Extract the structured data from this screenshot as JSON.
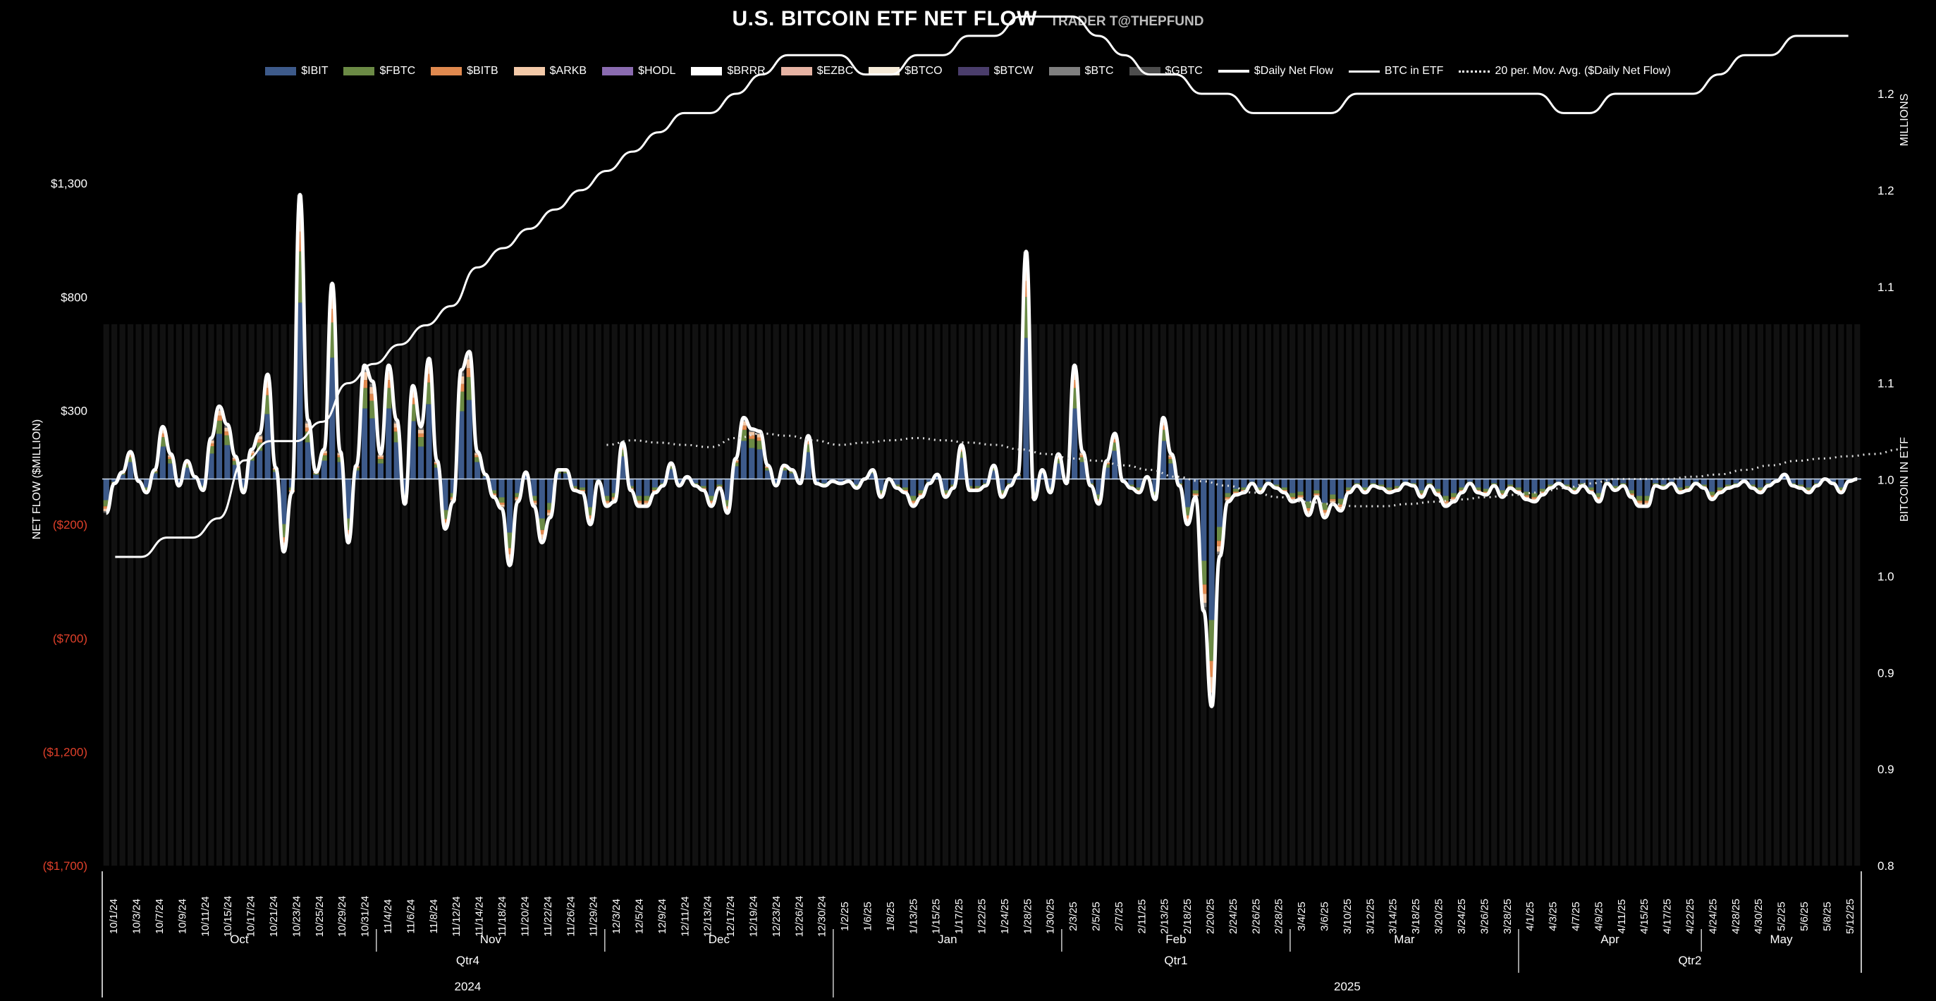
{
  "chart_data": {
    "type": "bar",
    "title": "U.S. BITCOIN ETF NET FLOW",
    "subtitle": "TRADER T@THEPFUND",
    "y_left_label": "NET FLOW ($MILLION)",
    "y_right_label": "BITCOIN IN ETF",
    "y_right_unit": "MILLIONS",
    "y_left_ticks": [
      "$1,300",
      "$800",
      "$300",
      "($200)",
      "($700)",
      "($1,200)",
      "($1,700)"
    ],
    "y_left_tick_values": [
      1300,
      800,
      300,
      -200,
      -700,
      -1200,
      -1700
    ],
    "y_right_ticks": [
      "1.2",
      "1.2",
      "1.1",
      "1.1",
      "1.0",
      "1.0",
      "0.9",
      "0.9",
      "0.8"
    ],
    "legend": [
      "$IBIT",
      "$FBTC",
      "$BITB",
      "$ARKB",
      "$HODL",
      "$BRRR",
      "$EZBC",
      "$BTCO",
      "$BTCW",
      "$BTC",
      "$GBTC",
      "$Daily Net Flow",
      "BTC in ETF",
      "20 per. Mov. Avg. ($Daily Net Flow)"
    ],
    "colors": {
      "$IBIT": "#3d5a8a",
      "$FBTC": "#6b8a45",
      "$BITB": "#e0894f",
      "$ARKB": "#f3c9a8",
      "$HODL": "#8a6bb0",
      "$BRRR": "#ffffff",
      "$EZBC": "#e6b3a3",
      "$BTCO": "#f5ead7",
      "$BTCW": "#4a3d6b",
      "$BTC": "#7f7f7f",
      "$GBTC": "#4d4d4d",
      "daily_net_flow": "#ffffff",
      "btc_in_etf": "#ffffff",
      "moving_avg": "#dddddd",
      "price_line": "#e8955a",
      "zero_line": "#cfe0f5"
    },
    "x_labels": [
      "10/1/24",
      "10/3/24",
      "10/7/24",
      "10/9/24",
      "10/11/24",
      "10/15/24",
      "10/17/24",
      "10/21/24",
      "10/23/24",
      "10/25/24",
      "10/29/24",
      "10/31/24",
      "11/4/24",
      "11/6/24",
      "11/8/24",
      "11/12/24",
      "11/14/24",
      "11/18/24",
      "11/20/24",
      "11/22/24",
      "11/26/24",
      "11/29/24",
      "12/3/24",
      "12/5/24",
      "12/9/24",
      "12/11/24",
      "12/13/24",
      "12/17/24",
      "12/19/24",
      "12/23/24",
      "12/26/24",
      "12/30/24",
      "1/2/25",
      "1/6/25",
      "1/8/25",
      "1/13/25",
      "1/15/25",
      "1/17/25",
      "1/22/25",
      "1/24/25",
      "1/28/25",
      "1/30/25",
      "2/3/25",
      "2/5/25",
      "2/7/25",
      "2/11/25",
      "2/13/25",
      "2/18/25",
      "2/20/25",
      "2/24/25",
      "2/26/25",
      "2/28/25",
      "3/4/25",
      "3/6/25",
      "3/10/25",
      "3/12/25",
      "3/14/25",
      "3/18/25",
      "3/20/25",
      "3/24/25",
      "3/26/25",
      "3/28/25",
      "4/1/25",
      "4/3/25",
      "4/7/25",
      "4/9/25",
      "4/11/25",
      "4/15/25",
      "4/17/25",
      "4/22/25",
      "4/24/25",
      "4/28/25",
      "4/30/25",
      "5/2/25",
      "5/6/25",
      "5/8/25",
      "5/12/25"
    ],
    "months": [
      "Oct",
      "Nov",
      "Dec",
      "Jan",
      "Feb",
      "Mar",
      "Apr",
      "May"
    ],
    "quarters": [
      "Qtr4",
      "Qtr1",
      "Qtr2"
    ],
    "years": [
      "2024",
      "2025"
    ],
    "daily_net_flow": [
      -150,
      -20,
      30,
      120,
      -10,
      -60,
      40,
      230,
      110,
      -30,
      80,
      10,
      -50,
      180,
      320,
      240,
      100,
      -60,
      130,
      200,
      460,
      50,
      -320,
      -60,
      1250,
      260,
      30,
      130,
      860,
      120,
      -280,
      60,
      500,
      430,
      110,
      500,
      260,
      -110,
      410,
      230,
      530,
      80,
      -220,
      -100,
      480,
      560,
      120,
      20,
      -80,
      -130,
      -380,
      -100,
      30,
      -120,
      -280,
      -170,
      40,
      40,
      -50,
      -60,
      -200,
      -10,
      -120,
      -100,
      160,
      -50,
      -120,
      -120,
      -60,
      -30,
      70,
      -30,
      10,
      -30,
      -50,
      -120,
      -40,
      -150,
      90,
      270,
      220,
      210,
      60,
      -30,
      60,
      40,
      -20,
      190,
      -20,
      -30,
      -10,
      -20,
      -10,
      -40,
      0,
      40,
      -80,
      0,
      -40,
      -60,
      -120,
      -80,
      -20,
      20,
      -80,
      -40,
      150,
      -50,
      -50,
      -30,
      60,
      -80,
      -30,
      20,
      1000,
      -90,
      40,
      -60,
      110,
      -20,
      500,
      120,
      -30,
      -110,
      80,
      200,
      -10,
      -40,
      -60,
      10,
      -90,
      270,
      110,
      -30,
      -200,
      -80,
      -580,
      -1000,
      -340,
      -100,
      -70,
      -60,
      -20,
      -60,
      -20,
      -40,
      -60,
      -100,
      -90,
      -160,
      -80,
      -170,
      -110,
      -140,
      -60,
      -30,
      -60,
      -30,
      -40,
      -60,
      -50,
      -20,
      -30,
      -80,
      -30,
      -70,
      -120,
      -100,
      -60,
      -20,
      -60,
      -70,
      -30,
      -80,
      -40,
      -60,
      -90,
      -100,
      -70,
      -40,
      -20,
      -40,
      -60,
      -30,
      -60,
      -100,
      -20,
      -50,
      -30,
      -80,
      -120,
      -120,
      -30,
      -40,
      -20,
      -60,
      -50,
      -20,
      -40,
      -90,
      -60,
      -40,
      -30,
      -10,
      -40,
      -60,
      -30,
      -10,
      20,
      -30,
      -40,
      -60,
      -30,
      0,
      -20,
      -60,
      -10,
      0
    ],
    "btc_in_etf_millions": [
      0.96,
      0.96,
      0.97,
      0.97,
      0.98,
      1.01,
      1.02,
      1.02,
      1.03,
      1.05,
      1.06,
      1.07,
      1.08,
      1.09,
      1.11,
      1.12,
      1.13,
      1.14,
      1.15,
      1.16,
      1.17,
      1.18,
      1.19,
      1.19,
      1.2,
      1.21,
      1.22,
      1.22,
      1.22,
      1.21,
      1.21,
      1.22,
      1.22,
      1.23,
      1.23,
      1.24,
      1.24,
      1.24,
      1.23,
      1.22,
      1.21,
      1.21,
      1.2,
      1.2,
      1.19,
      1.19,
      1.19,
      1.19,
      1.2,
      1.2,
      1.2,
      1.2,
      1.2,
      1.2,
      1.2,
      1.2,
      1.19,
      1.19,
      1.2,
      1.2,
      1.2,
      1.2,
      1.21,
      1.22,
      1.22,
      1.23,
      1.23,
      1.23
    ],
    "moving_avg_net_flow": [
      null,
      null,
      null,
      null,
      null,
      null,
      null,
      null,
      null,
      null,
      null,
      null,
      null,
      null,
      null,
      null,
      null,
      null,
      null,
      150,
      170,
      160,
      150,
      140,
      180,
      200,
      190,
      170,
      150,
      160,
      170,
      180,
      170,
      160,
      150,
      130,
      110,
      90,
      80,
      60,
      40,
      10,
      -10,
      -30,
      -60,
      -80,
      -100,
      -110,
      -120,
      -120,
      -110,
      -100,
      -90,
      -80,
      -70,
      -60,
      -40,
      -20,
      0,
      0,
      0,
      10,
      20,
      40,
      60,
      80,
      90,
      100,
      110,
      130
    ],
    "x_axis_range_left": [
      -1700,
      1300
    ],
    "x_axis_range_right": [
      0.8,
      1.2
    ],
    "grid": false,
    "legend_position": "top"
  }
}
